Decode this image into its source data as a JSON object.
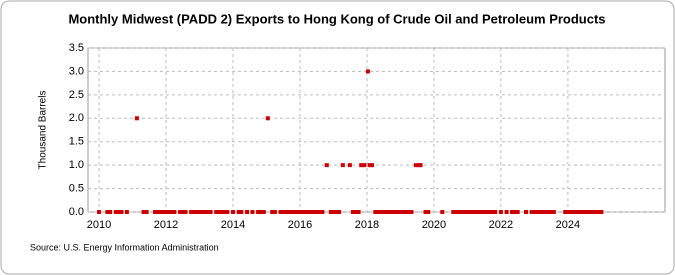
{
  "chart_data": {
    "type": "scatter",
    "title": "Monthly Midwest (PADD 2) Exports to Hong Kong of Crude Oil and Petroleum Products",
    "y_label": "Thousand Barrels",
    "source": "Source: U.S. Energy Information Administration",
    "color": "#cc0000",
    "grid": true,
    "x": [
      2010.0,
      2010.25,
      2010.33,
      2010.5,
      2010.58,
      2010.67,
      2010.83,
      2011.33,
      2011.42,
      2011.67,
      2011.75,
      2011.83,
      2011.92,
      2012.0,
      2012.08,
      2012.17,
      2012.25,
      2012.42,
      2012.5,
      2012.58,
      2012.75,
      2012.83,
      2012.92,
      2013.0,
      2013.08,
      2013.17,
      2013.25,
      2013.33,
      2013.5,
      2013.58,
      2013.67,
      2013.75,
      2013.83,
      2014.0,
      2014.17,
      2014.25,
      2014.42,
      2014.58,
      2014.75,
      2014.83,
      2014.92,
      2015.17,
      2015.25,
      2015.42,
      2015.5,
      2015.58,
      2015.67,
      2015.75,
      2015.83,
      2015.92,
      2016.0,
      2016.08,
      2016.17,
      2016.25,
      2016.33,
      2016.42,
      2016.5,
      2016.58,
      2016.67,
      2016.92,
      2017.0,
      2017.08,
      2017.17,
      2017.58,
      2017.67,
      2017.75,
      2018.25,
      2018.33,
      2018.42,
      2018.5,
      2018.58,
      2018.67,
      2018.75,
      2018.83,
      2018.92,
      2019.0,
      2019.08,
      2019.17,
      2019.25,
      2019.33,
      2019.75,
      2019.83,
      2020.25,
      2020.58,
      2020.67,
      2020.75,
      2020.83,
      2020.92,
      2021.0,
      2021.08,
      2021.17,
      2021.25,
      2021.33,
      2021.42,
      2021.5,
      2021.58,
      2021.67,
      2021.75,
      2021.83,
      2022.0,
      2022.17,
      2022.33,
      2022.42,
      2022.5,
      2022.75,
      2022.92,
      2023.0,
      2023.08,
      2023.17,
      2023.25,
      2023.33,
      2023.42,
      2023.5,
      2023.58,
      2023.92,
      2024.0,
      2024.08,
      2024.17,
      2024.25,
      2024.33,
      2024.42,
      2024.5,
      2024.58,
      2024.67,
      2024.75,
      2024.83,
      2024.92,
      2025.0,
      2011.13,
      2015.04,
      2016.8,
      2017.28,
      2017.49,
      2017.83,
      2017.92,
      2018.03,
      2018.08,
      2018.15,
      2019.46,
      2019.55,
      2019.6
    ],
    "values": [
      0,
      0,
      0,
      0,
      0,
      0,
      0,
      0,
      0,
      0,
      0,
      0,
      0,
      0,
      0,
      0,
      0,
      0,
      0,
      0,
      0,
      0,
      0,
      0,
      0,
      0,
      0,
      0,
      0,
      0,
      0,
      0,
      0,
      0,
      0,
      0,
      0,
      0,
      0,
      0,
      0,
      0,
      0,
      0,
      0,
      0,
      0,
      0,
      0,
      0,
      0,
      0,
      0,
      0,
      0,
      0,
      0,
      0,
      0,
      0,
      0,
      0,
      0,
      0,
      0,
      0,
      0,
      0,
      0,
      0,
      0,
      0,
      0,
      0,
      0,
      0,
      0,
      0,
      0,
      0,
      0,
      0,
      0,
      0,
      0,
      0,
      0,
      0,
      0,
      0,
      0,
      0,
      0,
      0,
      0,
      0,
      0,
      0,
      0,
      0,
      0,
      0,
      0,
      0,
      0,
      0,
      0,
      0,
      0,
      0,
      0,
      0,
      0,
      0,
      0,
      0,
      0,
      0,
      0,
      0,
      0,
      0,
      0,
      0,
      0,
      0,
      0,
      0,
      2,
      2,
      1,
      1,
      1,
      1,
      1,
      3,
      1,
      1,
      1,
      1,
      1
    ],
    "xlim": [
      2009.67,
      2026.9
    ],
    "xticks": [
      2010,
      2012,
      2014,
      2016,
      2018,
      2020,
      2022,
      2024
    ],
    "ylim": [
      0,
      3.5
    ],
    "yticks": [
      {
        "value": 0,
        "label": "0.0"
      },
      0.5,
      {
        "value": 1,
        "label": "1.0"
      },
      1.5,
      {
        "value": 2,
        "label": "2.0"
      },
      2.5,
      {
        "value": 3,
        "label": "3.0"
      },
      3.5
    ]
  }
}
